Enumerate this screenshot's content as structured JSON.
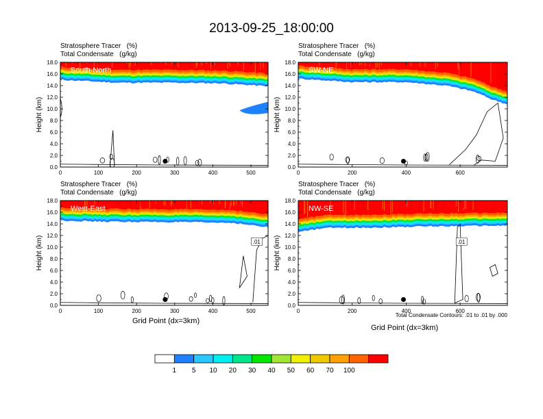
{
  "title": "2013-09-25_18:00:00",
  "colors": {
    "levels": [
      "#ffffff",
      "#1e82ff",
      "#28c8ff",
      "#00f0f0",
      "#00e68c",
      "#00e600",
      "#a0e632",
      "#f0f000",
      "#f0c800",
      "#ffa000",
      "#ff6400",
      "#ff0000"
    ]
  },
  "colorbar": {
    "labels": [
      "1",
      "5",
      "10",
      "20",
      "30",
      "40",
      "50",
      "60",
      "70",
      "100"
    ]
  },
  "footnote": "Total Condensate Contours: .01 to .01 by .000",
  "chart_data": [
    {
      "type": "contour",
      "panel_label": "South-North",
      "caption_line1": "Stratosphere Tracer   (%)",
      "caption_line2": "Total Condensate   (g/kg)",
      "xlabel": "",
      "ylabel": "Height (km)",
      "xlim": [
        0,
        545
      ],
      "ylim": [
        0,
        18
      ],
      "xticks": [
        0,
        100,
        200,
        300,
        400,
        500
      ],
      "yticks": [
        0.0,
        2.0,
        4.0,
        6.0,
        8.0,
        10.0,
        12.0,
        14.0,
        16.0,
        18.0
      ],
      "marker": {
        "x": 275,
        "y": 1.0
      },
      "tracer_base_km": [
        [
          0,
          15.0
        ],
        [
          60,
          14.8
        ],
        [
          150,
          14.5
        ],
        [
          300,
          14.5
        ],
        [
          420,
          14.4
        ],
        [
          545,
          13.9
        ]
      ],
      "anomaly": {
        "x_range": [
          470,
          545
        ],
        "height_km": [
          9.0,
          10.5
        ],
        "level": 1
      },
      "condensate_contour": "0.01",
      "contour_label": ""
    },
    {
      "type": "contour",
      "panel_label": "SW-NE",
      "caption_line1": "Stratosphere Tracer   (%)",
      "caption_line2": "Total Condensate   (g/kg)",
      "xlabel": "",
      "ylabel": "Height (km)",
      "xlim": [
        0,
        775
      ],
      "ylim": [
        0,
        18
      ],
      "xticks": [
        0,
        200,
        400,
        600
      ],
      "yticks": [
        0.0,
        2.0,
        4.0,
        6.0,
        8.0,
        10.0,
        12.0,
        14.0,
        16.0,
        18.0
      ],
      "marker": {
        "x": 390,
        "y": 1.0
      },
      "tracer_base_km": [
        [
          0,
          15.2
        ],
        [
          200,
          14.6
        ],
        [
          400,
          14.6
        ],
        [
          550,
          14.0
        ],
        [
          650,
          13.0
        ],
        [
          720,
          11.6
        ],
        [
          775,
          10.8
        ]
      ],
      "anomaly": null,
      "condensate_contour": "0.01",
      "contour_label": ""
    },
    {
      "type": "contour",
      "panel_label": "West-East",
      "caption_line1": "Stratosphere Tracer   (%)",
      "caption_line2": "Total Condensate   (g/kg)",
      "xlabel": "Grid Point (dx=3km)",
      "ylabel": "Height (km)",
      "xlim": [
        0,
        545
      ],
      "ylim": [
        0,
        18
      ],
      "xticks": [
        0,
        100,
        200,
        300,
        400,
        500
      ],
      "yticks": [
        0.0,
        2.0,
        4.0,
        6.0,
        8.0,
        10.0,
        12.0,
        14.0,
        16.0,
        18.0
      ],
      "marker": {
        "x": 275,
        "y": 1.0
      },
      "tracer_base_km": [
        [
          0,
          14.6
        ],
        [
          100,
          14.4
        ],
        [
          300,
          14.3
        ],
        [
          450,
          14.2
        ],
        [
          545,
          13.4
        ]
      ],
      "anomaly": null,
      "condensate_contour": "0.01",
      "contour_label": ".01"
    },
    {
      "type": "contour",
      "panel_label": "NW-SE",
      "caption_line1": "Stratosphere Tracer   (%)",
      "caption_line2": "Total Condensate   (g/kg)",
      "xlabel": "Grid Point (dx=3km)",
      "ylabel": "Height (km)",
      "xlim": [
        0,
        775
      ],
      "ylim": [
        0,
        18
      ],
      "xticks": [
        0,
        200,
        400,
        600
      ],
      "yticks": [
        0.0,
        2.0,
        4.0,
        6.0,
        8.0,
        10.0,
        12.0,
        14.0,
        16.0,
        18.0
      ],
      "marker": {
        "x": 390,
        "y": 1.0
      },
      "tracer_base_km": [
        [
          0,
          12.6
        ],
        [
          100,
          13.3
        ],
        [
          300,
          13.4
        ],
        [
          500,
          13.6
        ],
        [
          775,
          13.7
        ]
      ],
      "anomaly": null,
      "condensate_contour": "0.01",
      "contour_label": ".01"
    }
  ]
}
